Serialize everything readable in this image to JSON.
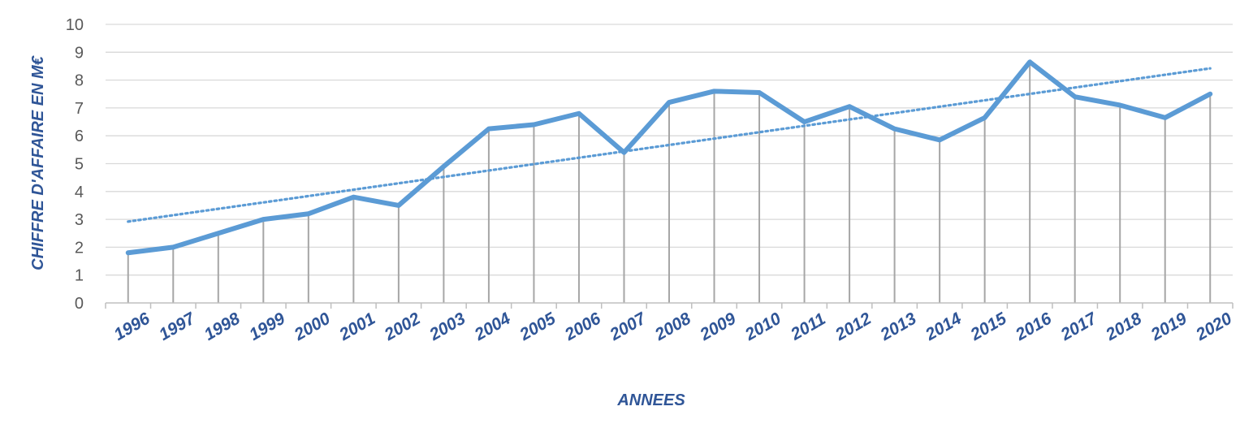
{
  "chart_data": {
    "type": "line",
    "title": "",
    "xlabel": "ANNEES",
    "ylabel": "CHIFFRE D'AFFAIRE EN M€",
    "ylim": [
      0,
      10
    ],
    "yticks": [
      0,
      1,
      2,
      3,
      4,
      5,
      6,
      7,
      8,
      9,
      10
    ],
    "grid": true,
    "legend": "none",
    "drop_lines": true,
    "categories": [
      "1996",
      "1997",
      "1998",
      "1999",
      "2000",
      "2001",
      "2002",
      "2003",
      "2004",
      "2005",
      "2006",
      "2007",
      "2008",
      "2009",
      "2010",
      "2011",
      "2012",
      "2013",
      "2014",
      "2015",
      "2016",
      "2017",
      "2018",
      "2019",
      "2020"
    ],
    "series": [
      {
        "kind": "data",
        "values": [
          1.8,
          2.0,
          2.5,
          3.0,
          3.2,
          3.8,
          3.5,
          4.9,
          6.25,
          6.4,
          6.8,
          5.4,
          7.2,
          7.6,
          7.55,
          6.5,
          7.05,
          6.25,
          5.85,
          6.65,
          8.65,
          7.4,
          7.1,
          6.65,
          7.5
        ],
        "color": "#5b9bd5",
        "style": "solid"
      },
      {
        "kind": "trendline",
        "trend_type": "linear",
        "start": 2.92,
        "end": 8.42,
        "color": "#5b9bd5",
        "style": "dotted"
      }
    ],
    "colors": {
      "grid": "#d9d9d9",
      "drop_line": "#a6a6a6",
      "axis": "#bfbfbf",
      "y_tick_text": "#595959",
      "x_tick_text": "#2f5597",
      "axis_title": "#2f5597"
    }
  }
}
